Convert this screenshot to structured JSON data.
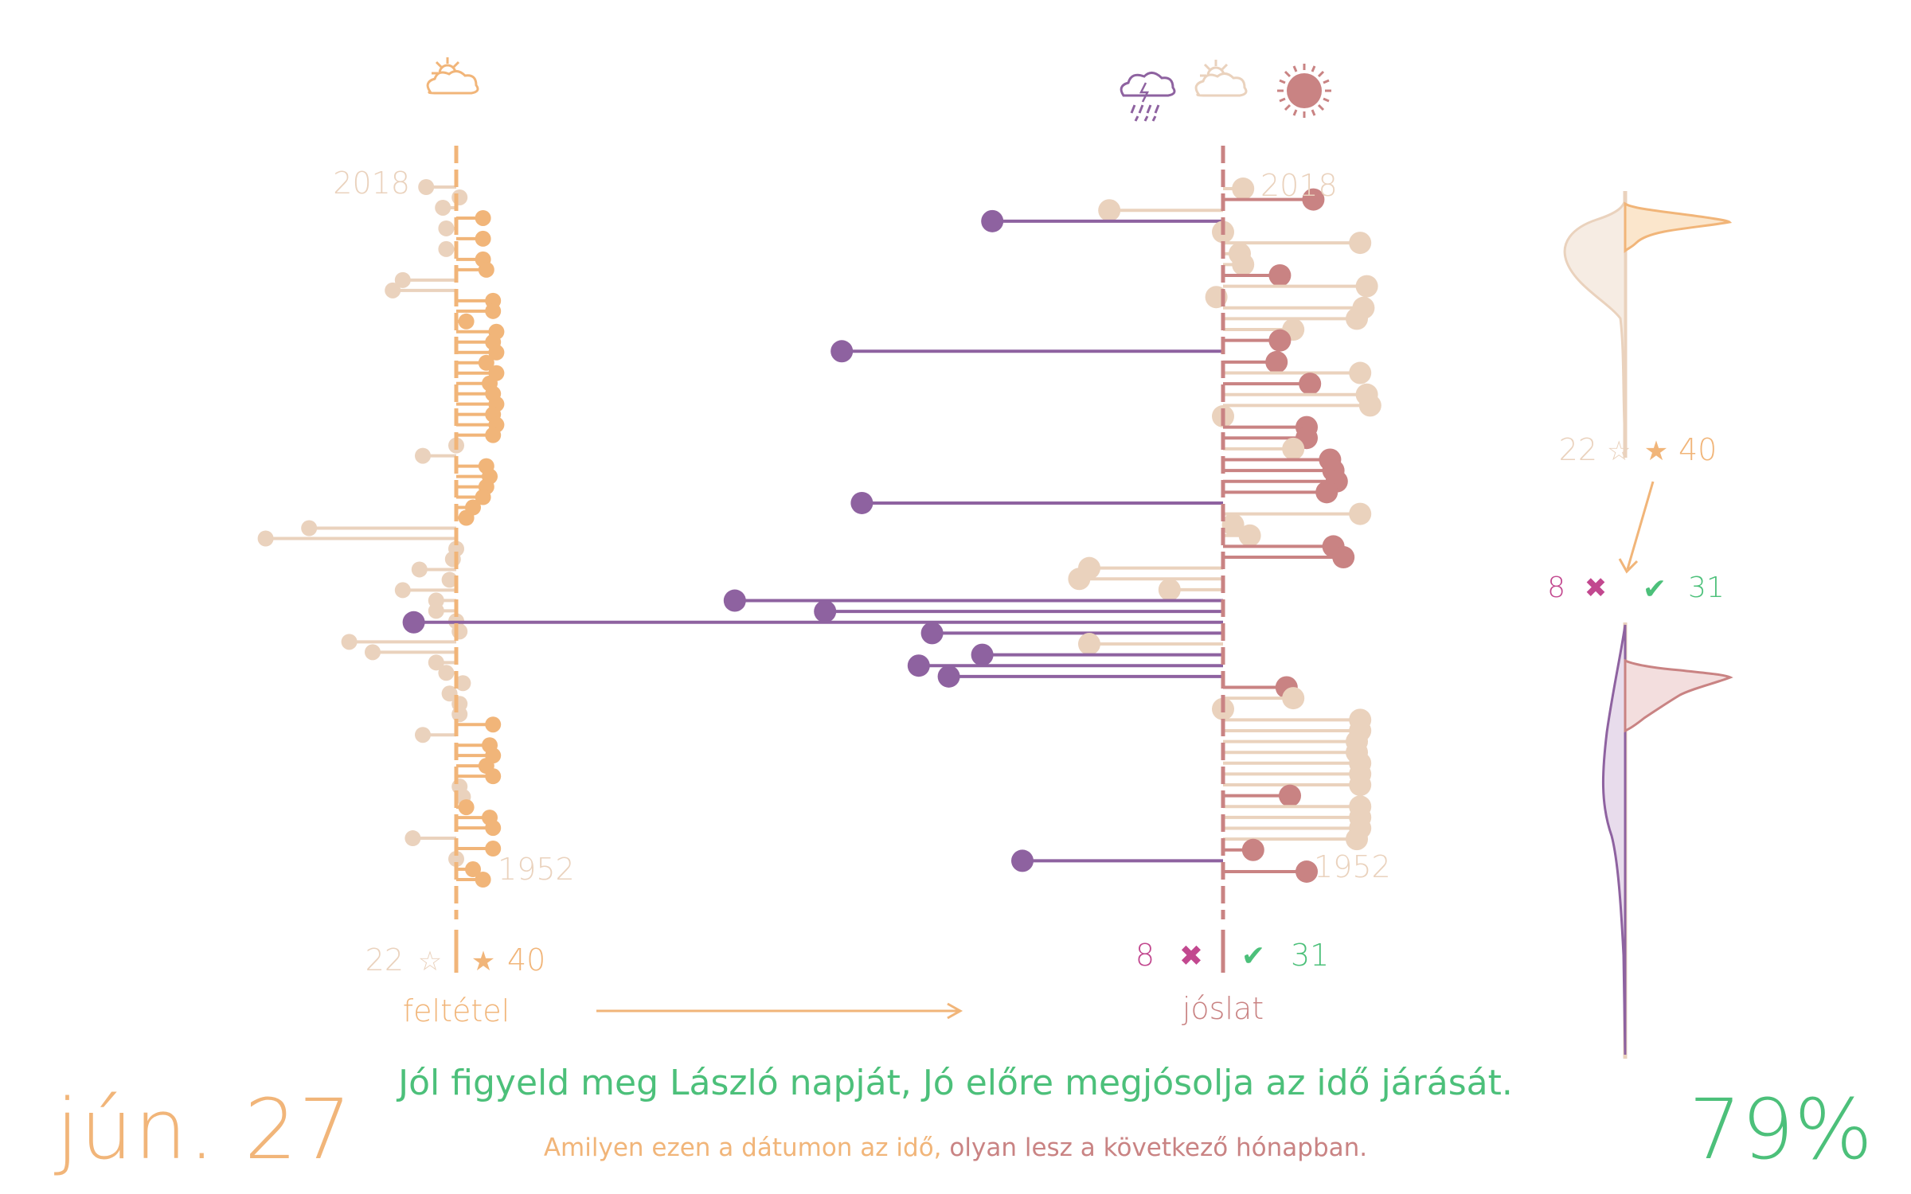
{
  "footer": {
    "date": "jún. 27",
    "percent": "79%",
    "proverb": "Jól figyeld meg László napját, Jó előre megjósolja az idő járását.",
    "explanation_part1": "Amilyen ezen a dátumon az idő,",
    "explanation_part2": "olyan lesz a következő hónapban."
  },
  "left_panel": {
    "label": "feltétel",
    "year_top": "2018",
    "year_bottom": "1952",
    "count_left": "22",
    "count_right": "40",
    "star_empty": "☆",
    "star_full": "★",
    "icon": "partly-cloudy-icon"
  },
  "right_panel": {
    "label": "jóslat",
    "year_top": "2018",
    "year_bottom": "1952",
    "count_wrong": "8",
    "count_right": "31",
    "wrong_mark": "✖",
    "right_mark": "✔",
    "icons": [
      "storm-icon",
      "partly-cloudy-icon",
      "sun-icon"
    ]
  },
  "side_panel": {
    "count_left": "22",
    "count_right": "40",
    "count_wrong": "8",
    "count_right_pred": "31"
  },
  "colors": {
    "orange": "#f1b579",
    "beige": "#ead2bd",
    "rose": "#c98383",
    "purple": "#8e62a0",
    "green": "#4cc07a",
    "magenta": "#c2488f"
  },
  "chart_data": [
    {
      "type": "lollipop",
      "name": "feltétel",
      "years": [
        2018,
        1952
      ],
      "values": [
        -0.9,
        0.1,
        -0.4,
        0.8,
        -0.3,
        0.8,
        -0.3,
        0.8,
        0.9,
        -1.6,
        -1.9,
        1.1,
        1.1,
        0.3,
        1.2,
        1.1,
        1.2,
        0.9,
        1.2,
        1.0,
        1.1,
        1.2,
        1.1,
        1.2,
        1.1,
        0.0,
        -1.0,
        0.9,
        1.0,
        0.9,
        0.8,
        0.5,
        0.3,
        -4.4,
        -5.7,
        0.0,
        -0.1,
        -1.1,
        -0.2,
        -1.6,
        -0.6,
        -0.6,
        0.0,
        0.1,
        -3.2,
        -2.5,
        -0.6,
        -0.3,
        0.2,
        -0.2,
        0.1,
        0.1,
        1.1,
        -1.0,
        1.0,
        1.1,
        0.9,
        1.1,
        0.1,
        0.2,
        0.3,
        1.0,
        1.1,
        -1.3,
        1.1,
        0.0,
        0.5,
        0.8
      ],
      "categories_shown": [
        "sunny",
        "partly-cloudy"
      ]
    },
    {
      "type": "lollipop",
      "name": "jóslat",
      "years": [
        2018,
        1952
      ],
      "values": [
        0.6,
        2.7,
        -3.4,
        -6.9,
        0.0,
        4.1,
        0.5,
        0.6,
        1.7,
        4.3,
        -0.2,
        4.2,
        4.0,
        2.1,
        1.7,
        -11.4,
        1.6,
        4.1,
        2.6,
        4.3,
        4.4,
        0.0,
        2.5,
        2.5,
        2.1,
        3.2,
        3.3,
        3.4,
        3.1,
        -10.8,
        4.1,
        0.3,
        0.8,
        3.3,
        3.6,
        -4.0,
        -4.3,
        -1.6,
        -14.6,
        -11.9,
        -24.2,
        -8.7,
        -4.0,
        -7.2,
        -9.1,
        -8.2,
        1.9,
        2.1,
        0.0,
        4.1,
        4.1,
        4.0,
        4.0,
        4.1,
        4.1,
        4.1,
        2.0,
        4.1,
        4.1,
        4.1,
        4.0,
        0.9,
        -6.0,
        2.5
      ],
      "categories_shown": [
        "rainy",
        "partly-cloudy",
        "sunny"
      ]
    }
  ]
}
